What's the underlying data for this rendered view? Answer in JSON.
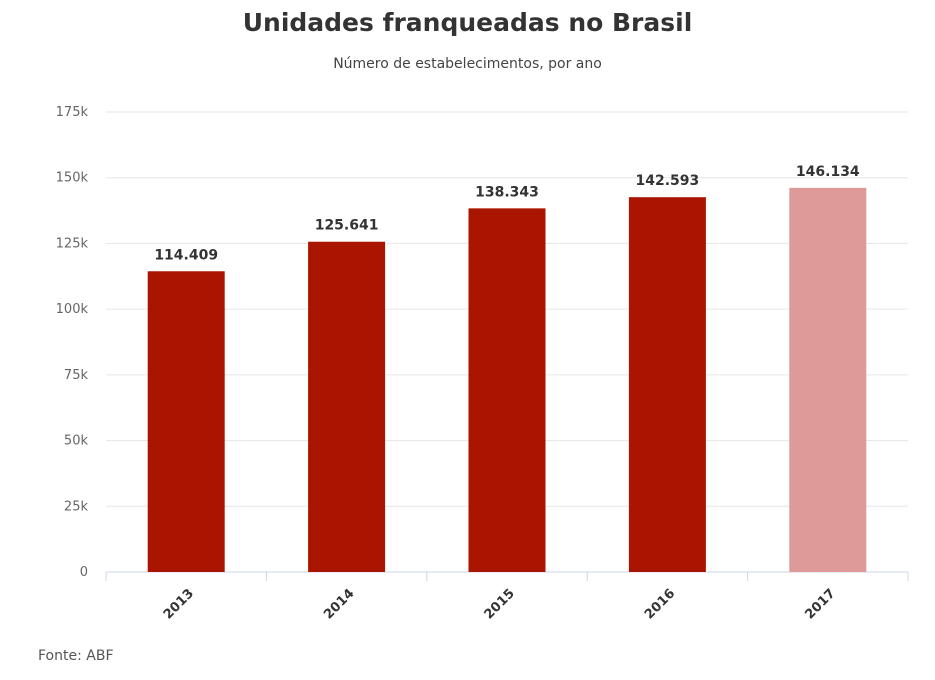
{
  "chart_data": {
    "type": "bar",
    "title": "Unidades franqueadas no Brasil",
    "subtitle": "Número de estabelecimentos, por ano",
    "categories": [
      "2013",
      "2014",
      "2015",
      "2016",
      "2017"
    ],
    "values": [
      114409,
      125641,
      138343,
      142593,
      146134
    ],
    "value_labels": [
      "114.409",
      "125.641",
      "138.343",
      "142.593",
      "146.134"
    ],
    "bar_colors": [
      "#aa1500",
      "#aa1500",
      "#aa1500",
      "#aa1500",
      "#dd9a98"
    ],
    "ylim": [
      0,
      175000
    ],
    "yticks": [
      0,
      25000,
      50000,
      75000,
      100000,
      125000,
      150000,
      175000
    ],
    "ytick_labels": [
      "0",
      "25k",
      "50k",
      "75k",
      "100k",
      "125k",
      "150k",
      "175k"
    ],
    "grid": true,
    "grid_color": "#e6e6e6",
    "xlabel": "",
    "ylabel": ""
  },
  "source": "Fonte: ABF"
}
